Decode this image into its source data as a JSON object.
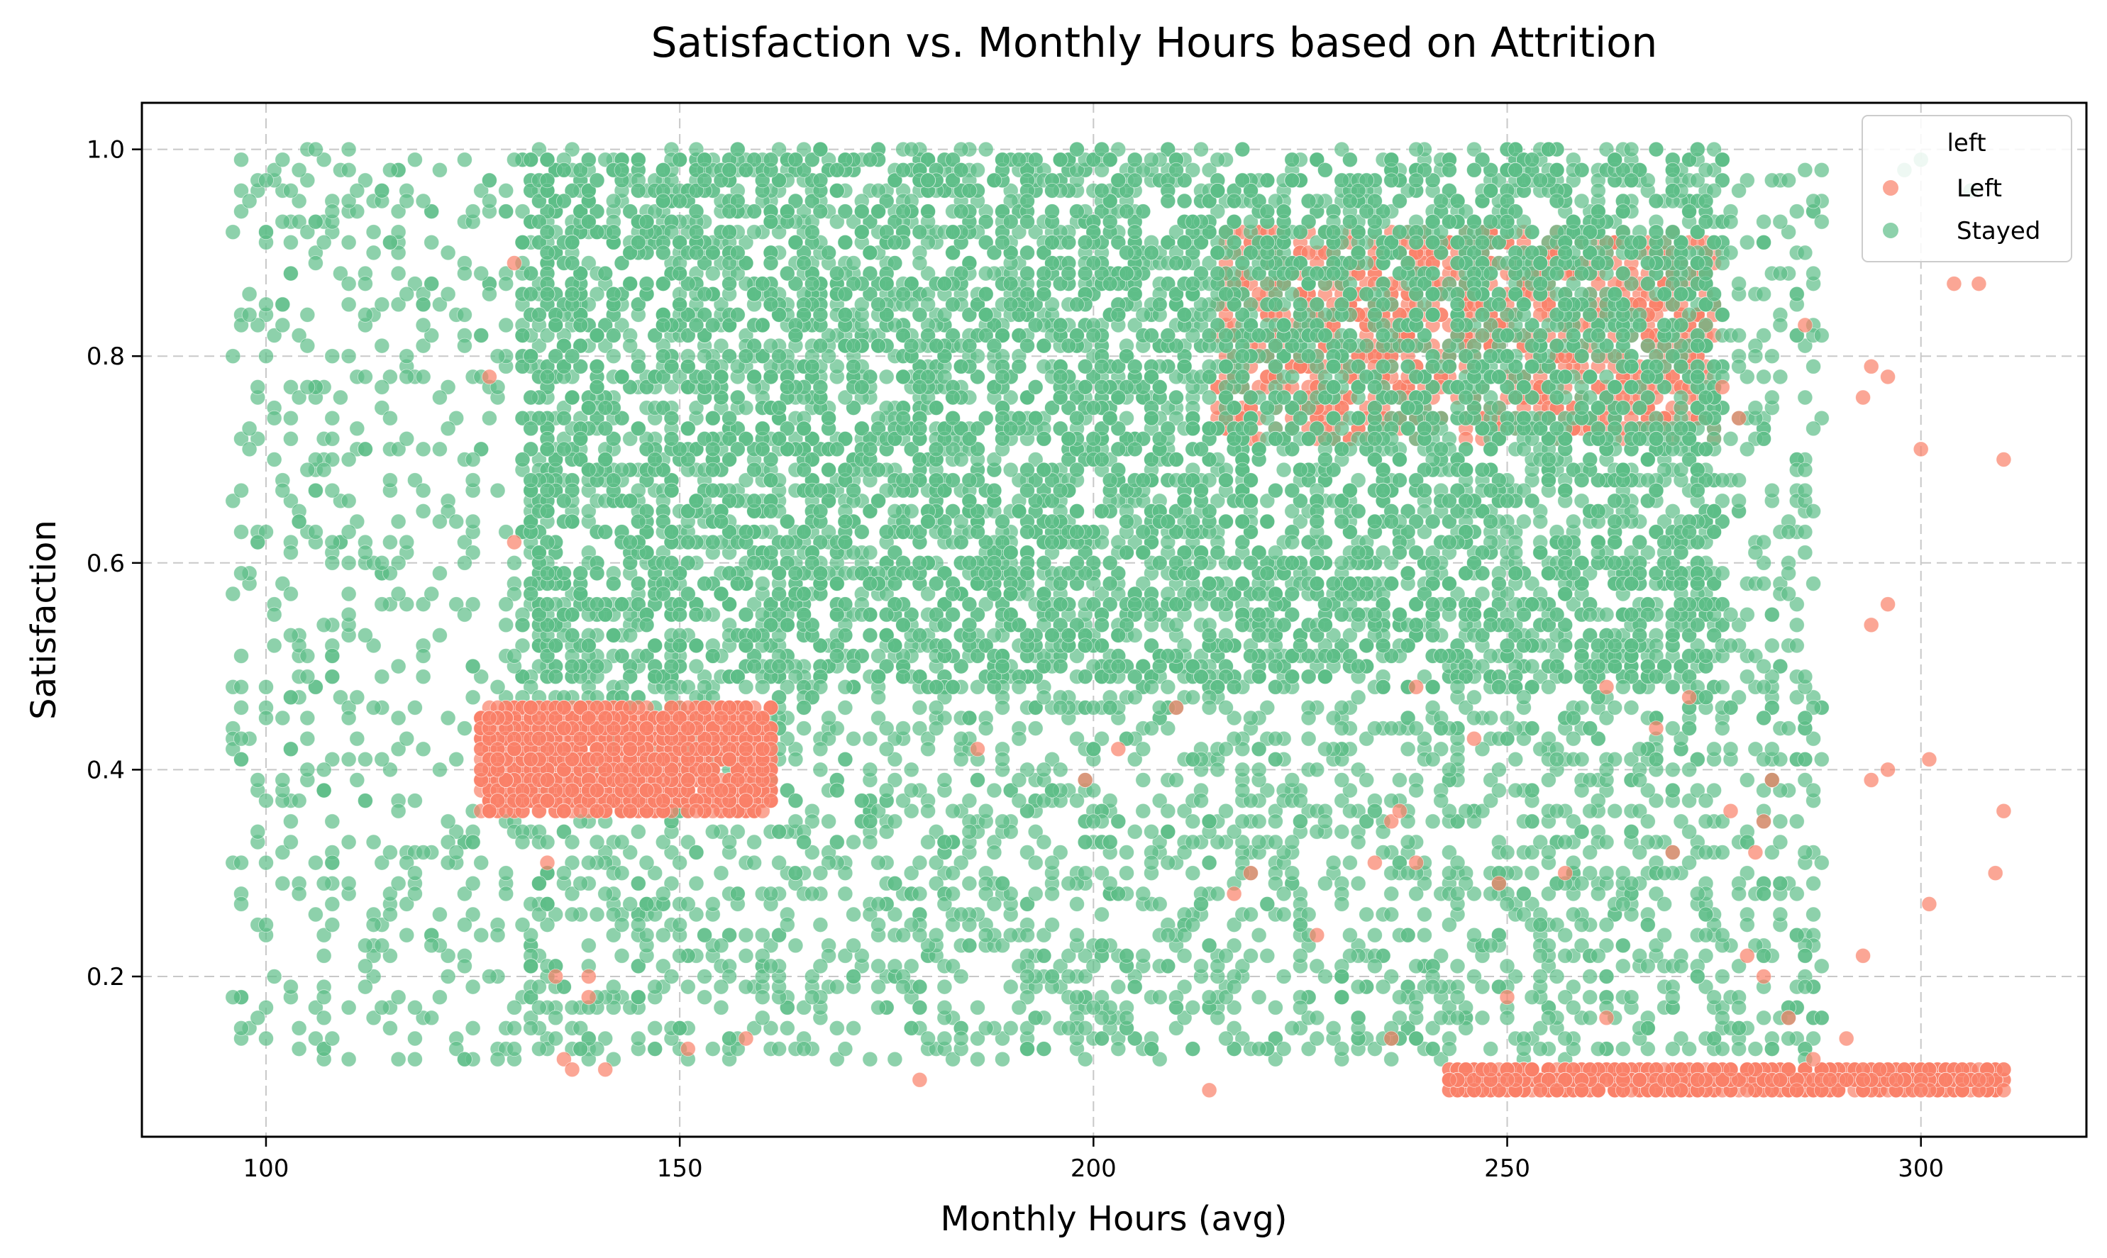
{
  "chart_data": {
    "type": "scatter",
    "title": "Satisfaction vs. Monthly Hours based on Attrition",
    "xlabel": "Monthly Hours (avg)",
    "ylabel": "Satisfaction",
    "xlim": [
      85,
      320
    ],
    "ylim": [
      0.045,
      1.045
    ],
    "x_ticks": [
      100,
      150,
      200,
      250,
      300
    ],
    "x_tick_labels": [
      "100",
      "150",
      "200",
      "250",
      "300"
    ],
    "y_ticks": [
      0.2,
      0.4,
      0.6,
      0.8,
      1.0
    ],
    "y_tick_labels": [
      "0.2",
      "0.4",
      "0.6",
      "0.8",
      "1.0"
    ],
    "grid": true,
    "grid_style": "dashed",
    "legend": {
      "title": "left",
      "placement": "top-right",
      "entries": [
        {
          "label": "Left",
          "color": "#fa8068"
        },
        {
          "label": "Stayed",
          "color": "#5dbd87"
        }
      ]
    },
    "series": [
      {
        "name": "Left",
        "color": "#fa8068",
        "clusters": [
          {
            "x_range": [
              126,
              161
            ],
            "y_range": [
              0.36,
              0.46
            ],
            "count": 1560
          },
          {
            "x_range": [
              243,
              310
            ],
            "y_range": [
              0.09,
              0.11
            ],
            "count": 890
          },
          {
            "x_range": [
              215,
              275
            ],
            "y_range": [
              0.72,
              0.92
            ],
            "count": 980
          }
        ],
        "points": [
          [
            130,
            0.89
          ],
          [
            127,
            0.78
          ],
          [
            130,
            0.62
          ],
          [
            134,
            0.31
          ],
          [
            136,
            0.12
          ],
          [
            137,
            0.11
          ],
          [
            141,
            0.11
          ],
          [
            139,
            0.18
          ],
          [
            135,
            0.2
          ],
          [
            139,
            0.2
          ],
          [
            151,
            0.13
          ],
          [
            158,
            0.14
          ],
          [
            179,
            0.1
          ],
          [
            214,
            0.09
          ],
          [
            210,
            0.46
          ],
          [
            203,
            0.42
          ],
          [
            186,
            0.42
          ],
          [
            199,
            0.39
          ],
          [
            219,
            0.3
          ],
          [
            217,
            0.28
          ],
          [
            227,
            0.24
          ],
          [
            236,
            0.35
          ],
          [
            237,
            0.36
          ],
          [
            234,
            0.31
          ],
          [
            239,
            0.31
          ],
          [
            236,
            0.14
          ],
          [
            246,
            0.43
          ],
          [
            249,
            0.29
          ],
          [
            257,
            0.3
          ],
          [
            250,
            0.18
          ],
          [
            262,
            0.16
          ],
          [
            268,
            0.44
          ],
          [
            270,
            0.32
          ],
          [
            272,
            0.47
          ],
          [
            277,
            0.36
          ],
          [
            279,
            0.22
          ],
          [
            280,
            0.32
          ],
          [
            281,
            0.2
          ],
          [
            282,
            0.39
          ],
          [
            281,
            0.35
          ],
          [
            284,
            0.16
          ],
          [
            287,
            0.12
          ],
          [
            278,
            0.74
          ],
          [
            276,
            0.77
          ],
          [
            293,
            0.76
          ],
          [
            294,
            0.79
          ],
          [
            296,
            0.78
          ],
          [
            300,
            0.71
          ],
          [
            294,
            0.54
          ],
          [
            296,
            0.56
          ],
          [
            294,
            0.39
          ],
          [
            296,
            0.4
          ],
          [
            301,
            0.41
          ],
          [
            301,
            0.27
          ],
          [
            293,
            0.22
          ],
          [
            291,
            0.14
          ],
          [
            304,
            0.87
          ],
          [
            307,
            0.87
          ],
          [
            310,
            0.7
          ],
          [
            310,
            0.36
          ],
          [
            309,
            0.3
          ],
          [
            286,
            0.83
          ],
          [
            239,
            0.48
          ],
          [
            262,
            0.48
          ]
        ]
      },
      {
        "name": "Stayed",
        "color": "#5dbd87",
        "clusters": [
          {
            "x_range": [
              131,
              276
            ],
            "y_range": [
              0.48,
              1.0
            ],
            "count": 7600
          },
          {
            "x_range": [
              96,
              130
            ],
            "y_range": [
              0.12,
              1.0
            ],
            "count": 520
          },
          {
            "x_range": [
              130,
              288
            ],
            "y_range": [
              0.12,
              0.48
            ],
            "count": 1900
          },
          {
            "x_range": [
              276,
              288
            ],
            "y_range": [
              0.48,
              0.98
            ],
            "count": 130
          }
        ],
        "points": [
          [
            96,
            0.92
          ],
          [
            97,
            0.99
          ],
          [
            100,
            0.97
          ],
          [
            102,
            0.99
          ],
          [
            104,
            0.98
          ],
          [
            105,
            1.0
          ],
          [
            106,
            1.0
          ],
          [
            110,
            1.0
          ],
          [
            97,
            0.15
          ],
          [
            99,
            0.16
          ],
          [
            110,
            0.12
          ],
          [
            108,
            0.14
          ],
          [
            98,
            0.84
          ],
          [
            102,
            0.83
          ],
          [
            111,
            0.96
          ],
          [
            115,
            0.91
          ],
          [
            118,
            0.99
          ],
          [
            119,
            0.95
          ],
          [
            121,
            0.76
          ],
          [
            122,
            0.86
          ],
          [
            124,
            0.84
          ],
          [
            298,
            0.98
          ],
          [
            300,
            0.99
          ],
          [
            306,
            0.96
          ],
          [
            284,
            0.97
          ],
          [
            286,
            0.98
          ],
          [
            287,
            0.95
          ],
          [
            285,
            0.82
          ],
          [
            287,
            0.73
          ],
          [
            286,
            0.69
          ],
          [
            287,
            0.58
          ],
          [
            286,
            0.45
          ],
          [
            287,
            0.38
          ],
          [
            284,
            0.16
          ],
          [
            286,
            0.12
          ],
          [
            288,
            0.21
          ],
          [
            282,
            0.52
          ],
          [
            281,
            0.48
          ],
          [
            283,
            0.88
          ],
          [
            281,
            0.91
          ]
        ]
      }
    ]
  }
}
